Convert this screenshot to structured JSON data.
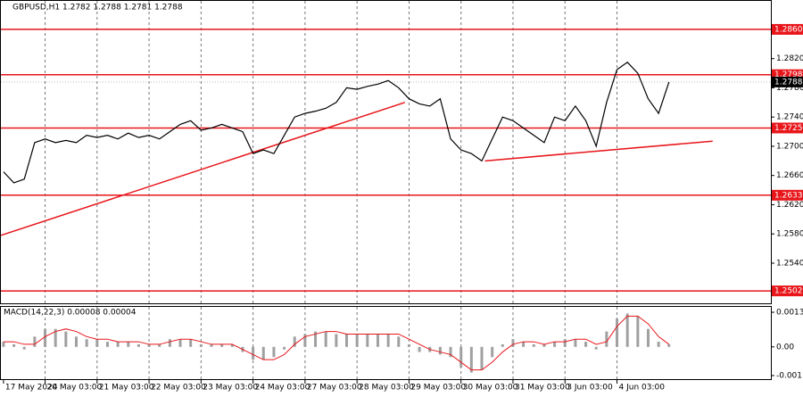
{
  "chart_data": {
    "type": "line",
    "title": "GBPUSD,H1  1.2782 1.2788 1.2781 1.2788",
    "xticks": [
      {
        "value": 0,
        "label": "17 May 2024"
      },
      {
        "value": 4,
        "label": "20 May 03:00"
      },
      {
        "value": 9,
        "label": "21 May 03:00"
      },
      {
        "value": 14,
        "label": "22 May 03:00"
      },
      {
        "value": 19,
        "label": "23 May 03:00"
      },
      {
        "value": 24,
        "label": "24 May 03:00"
      },
      {
        "value": 29,
        "label": "27 May 03:00"
      },
      {
        "value": 34,
        "label": "28 May 03:00"
      },
      {
        "value": 39,
        "label": "29 May 03:00"
      },
      {
        "value": 44,
        "label": "30 May 03:00"
      },
      {
        "value": 49,
        "label": "31 May 03:00"
      },
      {
        "value": 54,
        "label": "3 Jun 03:00"
      },
      {
        "value": 59,
        "label": "4 Jun 03:00"
      }
    ],
    "xlim": [
      -0.25,
      73.8
    ],
    "ylim": [
      1.2485,
      1.2899
    ],
    "yticks": [
      {
        "value": 1.282,
        "label": "1.2820"
      },
      {
        "value": 1.278,
        "label": "1.2780"
      },
      {
        "value": 1.274,
        "label": "1.2740"
      },
      {
        "value": 1.27,
        "label": "1.2700"
      },
      {
        "value": 1.266,
        "label": "1.2660"
      },
      {
        "value": 1.262,
        "label": "1.2620"
      },
      {
        "value": 1.258,
        "label": "1.2580"
      },
      {
        "value": 1.254,
        "label": "1.2540"
      }
    ],
    "levels": [
      {
        "value": 1.286,
        "label": "1.2860"
      },
      {
        "value": 1.2798,
        "label": "1.2798"
      },
      {
        "value": 1.2725,
        "label": "1.2725"
      },
      {
        "value": 1.2633,
        "label": "1.2633"
      },
      {
        "value": 1.2502,
        "label": "1.2502"
      }
    ],
    "current_price": {
      "value": 1.2788,
      "label": "1.2788"
    },
    "level_color": "#e8161b",
    "series": [
      {
        "name": "GBPUSD",
        "color": "#000000",
        "values": [
          1.2665,
          1.265,
          1.2655,
          1.2705,
          1.271,
          1.2705,
          1.2708,
          1.2705,
          1.2715,
          1.2712,
          1.2715,
          1.271,
          1.2718,
          1.2712,
          1.2715,
          1.271,
          1.272,
          1.273,
          1.2735,
          1.2722,
          1.2725,
          1.273,
          1.2725,
          1.272,
          1.269,
          1.2695,
          1.269,
          1.2715,
          1.274,
          1.2745,
          1.2748,
          1.2752,
          1.276,
          1.278,
          1.2778,
          1.2782,
          1.2785,
          1.279,
          1.278,
          1.2765,
          1.2758,
          1.2755,
          1.2765,
          1.271,
          1.2695,
          1.269,
          1.268,
          1.271,
          1.274,
          1.2735,
          1.2725,
          1.2715,
          1.2705,
          1.274,
          1.2735,
          1.2755,
          1.2735,
          1.27,
          1.276,
          1.2805,
          1.2815,
          1.28,
          1.2765,
          1.2745,
          1.2788
        ]
      }
    ],
    "trendlines": [
      {
        "x": [
          -0.25,
          38.6
        ],
        "y": [
          1.2578,
          1.276
        ]
      },
      {
        "x": [
          46.3,
          68.2
        ],
        "y": [
          1.268,
          1.2707
        ]
      }
    ],
    "macd": {
      "title": "MACD(14,22,3) 0.00008 0.00004",
      "ylim": [
        -0.00126,
        0.00156
      ],
      "yticks": [
        0.00135,
        {
          "value": 0,
          "label": "0.00"
        },
        -0.00112
      ],
      "series": [
        {
          "name": "MACD",
          "color": "#a0a0a0",
          "values": [
            0.0002,
            0.0001,
            -0.0001,
            0.0004,
            0.0007,
            0.0007,
            0.0006,
            0.0004,
            0.0003,
            0.0003,
            0.0002,
            0.0002,
            0.0002,
            0.0001,
            0.0001,
            0.0001,
            0.0003,
            0.0003,
            0.0003,
            0.0001,
            0.0001,
            0.0001,
            0.0001,
            -0.0002,
            -0.0005,
            -0.0005,
            -0.0004,
            -0.0001,
            0.0004,
            0.0005,
            0.0006,
            0.0006,
            0.0005,
            0.0005,
            0.0005,
            0.0005,
            0.0005,
            0.0005,
            0.0004,
            0.0001,
            -0.0002,
            -0.0002,
            -0.0003,
            -0.0004,
            -0.0008,
            -0.001,
            -0.0009,
            -0.0004,
            0.0001,
            0.0003,
            0.0002,
            0.0001,
            0.0001,
            0.0002,
            0.0003,
            0.0003,
            0.0002,
            -0.0001,
            0.0006,
            0.0011,
            0.0013,
            0.0012,
            0.0007,
            0.0002,
            0.0001
          ]
        },
        {
          "name": "Signal",
          "color": "#e8161b",
          "values": [
            0.0002,
            0.0002,
            0.0001,
            0.0001,
            0.0004,
            0.0006,
            0.0007,
            0.0006,
            0.0004,
            0.0003,
            0.0003,
            0.0002,
            0.0002,
            0.0002,
            0.0001,
            0.0001,
            0.0002,
            0.0003,
            0.0003,
            0.0002,
            0.0001,
            0.0001,
            0.0001,
            -0.0001,
            -0.0003,
            -0.0005,
            -0.0005,
            -0.0003,
            0.0001,
            0.0004,
            0.0005,
            0.0006,
            0.0006,
            0.0005,
            0.0005,
            0.0005,
            0.0005,
            0.0005,
            0.0005,
            0.0003,
            0.0001,
            -0.0001,
            -0.0002,
            -0.0003,
            -0.0006,
            -0.0009,
            -0.0009,
            -0.0006,
            -0.0002,
            0.0001,
            0.0002,
            0.0002,
            0.0001,
            0.0002,
            0.0002,
            0.0003,
            0.0003,
            0.0001,
            0.0002,
            0.0008,
            0.0012,
            0.0012,
            0.0009,
            0.0004,
            0.0001
          ]
        }
      ]
    }
  }
}
